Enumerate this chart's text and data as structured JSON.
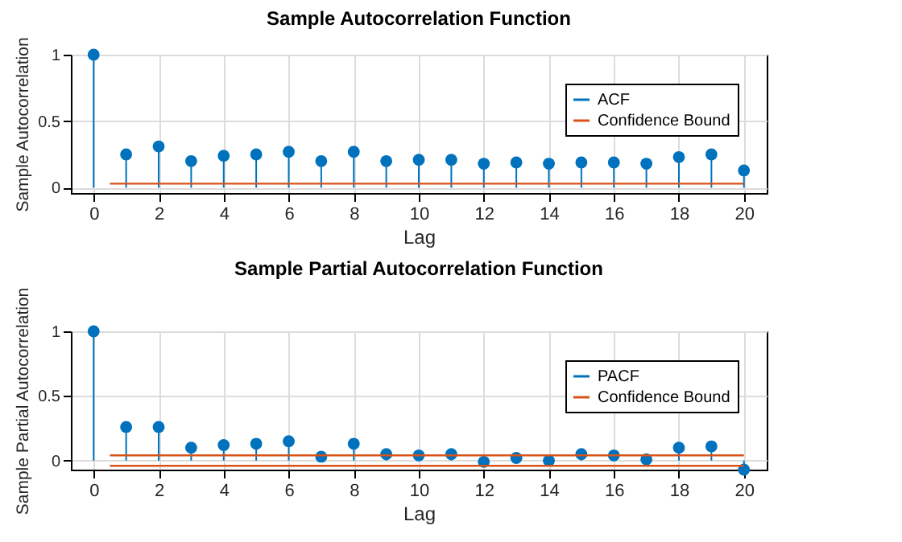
{
  "chart_data": [
    {
      "type": "line",
      "title": "Sample Autocorrelation Function",
      "xlabel": "Lag",
      "ylabel": "Sample Autocorrelation",
      "xlim": [
        -0.7,
        20.7
      ],
      "xticks": [
        0,
        2,
        4,
        6,
        8,
        10,
        12,
        14,
        16,
        18,
        20
      ],
      "ylim": [
        -0.04,
        1
      ],
      "yticks": [
        0,
        0.5,
        1
      ],
      "grid": true,
      "legend": "top right",
      "series": [
        {
          "name": "ACF",
          "type": "lollipop",
          "marker": "circle",
          "color": "#0072bd",
          "x": [
            0,
            1,
            2,
            3,
            4,
            5,
            6,
            7,
            8,
            9,
            10,
            11,
            12,
            13,
            14,
            15,
            16,
            17,
            18,
            19,
            20
          ],
          "values": [
            1,
            0.25,
            0.31,
            0.2,
            0.24,
            0.25,
            0.27,
            0.2,
            0.27,
            0.2,
            0.21,
            0.21,
            0.18,
            0.19,
            0.18,
            0.19,
            0.19,
            0.18,
            0.23,
            0.25,
            0.13
          ]
        },
        {
          "name": "Confidence Bound",
          "color": "#d95319",
          "x": [
            0.5,
            20
          ],
          "values": [
            0.03,
            0.03
          ]
        }
      ]
    },
    {
      "type": "line",
      "title": "Sample Partial Autocorrelation Function",
      "xlabel": "Lag",
      "ylabel": "Sample Partial Autocorrelation",
      "xlim": [
        -0.7,
        20.7
      ],
      "xticks": [
        0,
        2,
        4,
        6,
        8,
        10,
        12,
        14,
        16,
        18,
        20
      ],
      "ylim": [
        -0.07,
        1
      ],
      "yticks": [
        0,
        0.5,
        1
      ],
      "grid": true,
      "legend": "top right",
      "series": [
        {
          "name": "PACF",
          "type": "lollipop",
          "marker": "circle",
          "color": "#0072bd",
          "x": [
            0,
            1,
            2,
            3,
            4,
            5,
            6,
            7,
            8,
            9,
            10,
            11,
            12,
            13,
            14,
            15,
            16,
            17,
            18,
            19,
            20
          ],
          "values": [
            1,
            0.26,
            0.26,
            0.1,
            0.12,
            0.13,
            0.15,
            0.03,
            0.13,
            0.05,
            0.04,
            0.05,
            -0.01,
            0.02,
            0,
            0.05,
            0.04,
            0.01,
            0.1,
            0.11,
            -0.07
          ]
        },
        {
          "name": "Confidence Bound",
          "color": "#d95319",
          "x": [
            0.5,
            20
          ],
          "values": [
            0.04,
            0.04
          ]
        },
        {
          "color": "#d95319",
          "x": [
            0.5,
            20
          ],
          "values": [
            -0.04,
            -0.04
          ]
        }
      ]
    }
  ]
}
